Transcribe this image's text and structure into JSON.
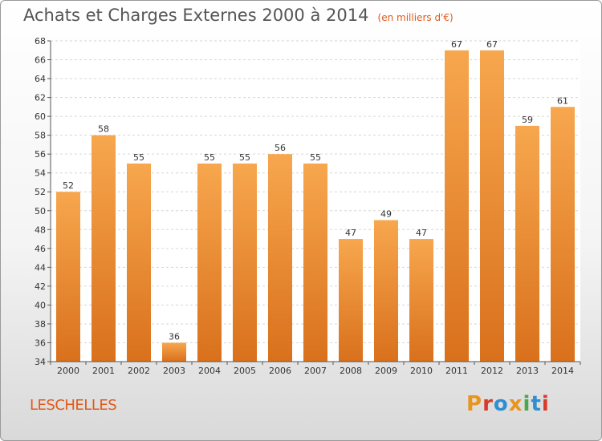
{
  "header": {
    "title": "Achats et Charges Externes 2000 à 2014",
    "subtitle": "(en milliers d'€)"
  },
  "footer": {
    "commune": "LESCHELLES",
    "logo_text": "Proxiti",
    "logo_colors": [
      "#e8951e",
      "#d93b2b",
      "#2f8fd0",
      "#e8951e",
      "#4aa84a",
      "#2f8fd0",
      "#d93b2b"
    ]
  },
  "chart_data": {
    "type": "bar",
    "title": "Achats et Charges Externes 2000 à 2014",
    "subtitle": "(en milliers d'€)",
    "categories": [
      "2000",
      "2001",
      "2002",
      "2003",
      "2004",
      "2005",
      "2006",
      "2007",
      "2008",
      "2009",
      "2010",
      "2011",
      "2012",
      "2013",
      "2014"
    ],
    "values": [
      52,
      58,
      55,
      36,
      55,
      55,
      56,
      55,
      47,
      49,
      47,
      67,
      67,
      59,
      61
    ],
    "ylim": [
      34,
      68
    ],
    "yticks": [
      34,
      36,
      38,
      40,
      42,
      44,
      46,
      48,
      50,
      52,
      54,
      56,
      58,
      60,
      62,
      64,
      66,
      68
    ],
    "grid": true,
    "bar_color_top": "#f7a74e",
    "bar_color_bottom": "#d9701c"
  }
}
